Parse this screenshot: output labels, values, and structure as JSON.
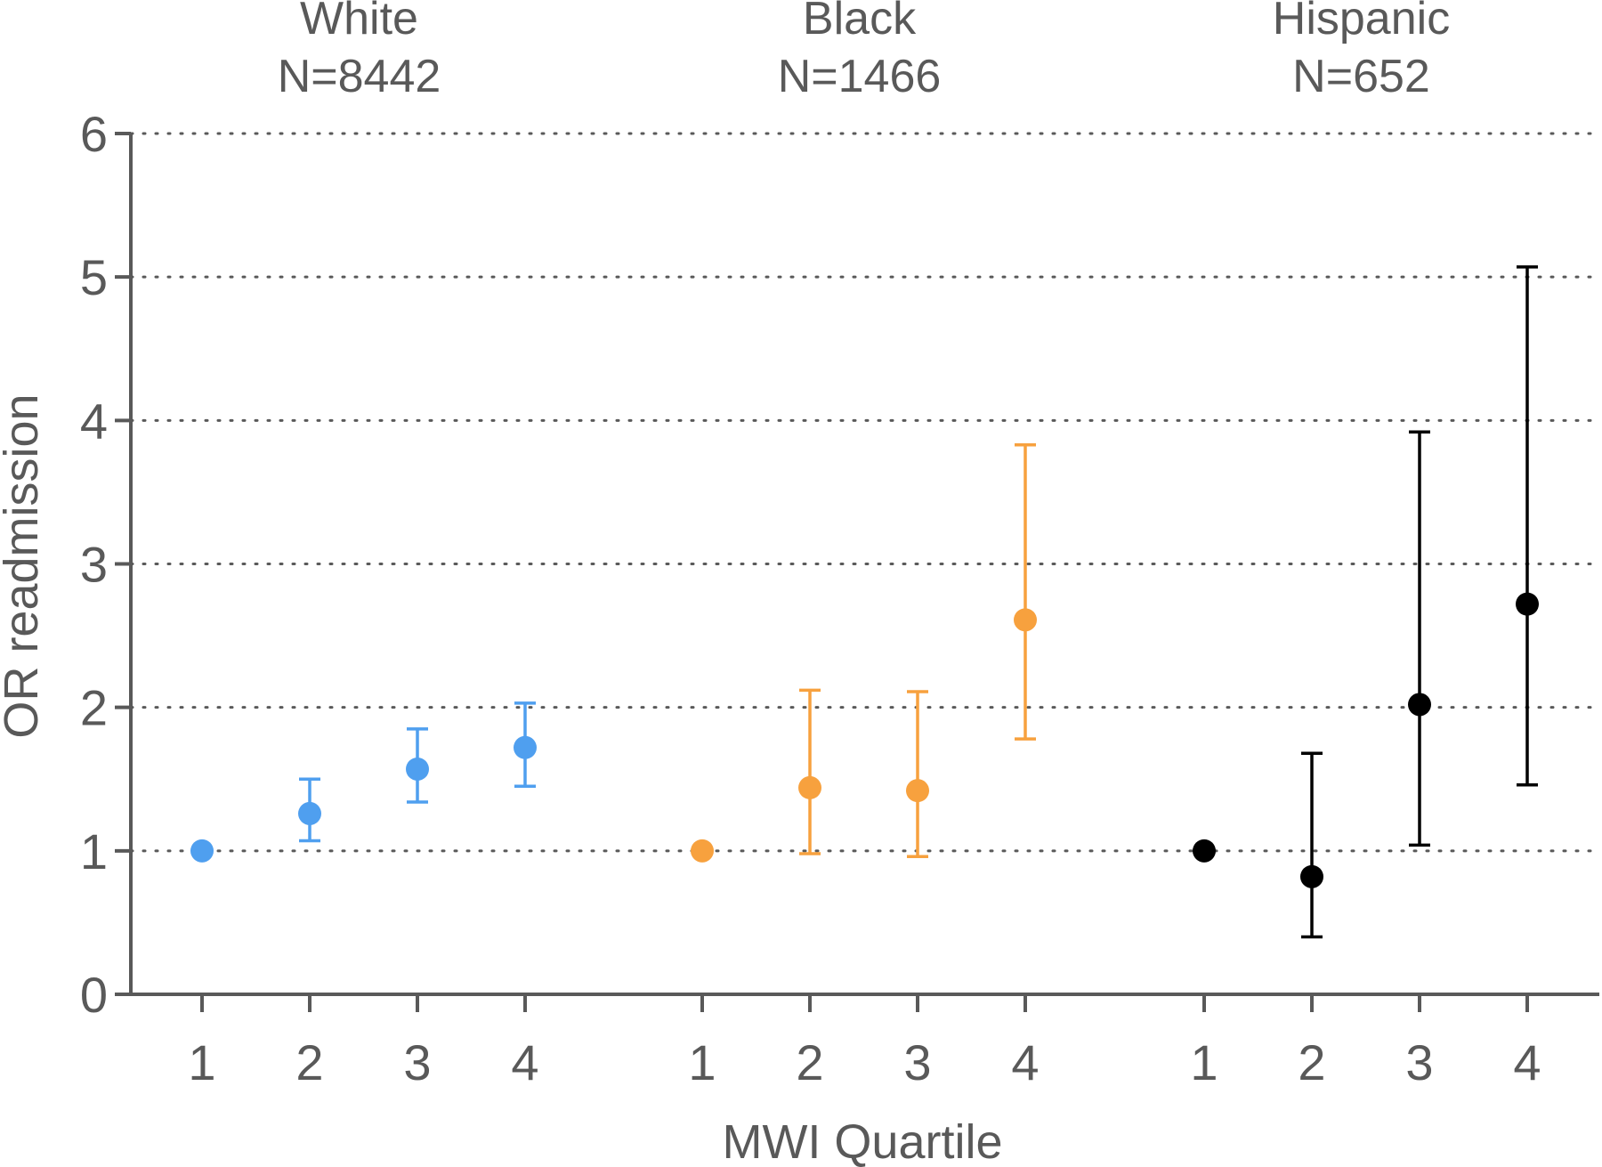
{
  "chart_data": {
    "type": "scatter",
    "title": "",
    "xlabel": "MWI Quartile",
    "ylabel": "OR readmission",
    "ylim": [
      0,
      6
    ],
    "yticks": [
      0,
      1,
      2,
      3,
      4,
      5,
      6
    ],
    "grid": "horizontal dotted at 1-6",
    "error_bars": true,
    "groups": [
      {
        "name": "White",
        "n_label": "N=8442",
        "color": "#4f9fef",
        "quartiles": [
          "1",
          "2",
          "3",
          "4"
        ],
        "or": [
          1.0,
          1.26,
          1.57,
          1.72
        ],
        "ci_low": [
          null,
          1.07,
          1.34,
          1.45
        ],
        "ci_high": [
          null,
          1.5,
          1.85,
          2.03
        ]
      },
      {
        "name": "Black",
        "n_label": "N=1466",
        "color": "#f7a13e",
        "quartiles": [
          "1",
          "2",
          "3",
          "4"
        ],
        "or": [
          1.0,
          1.44,
          1.42,
          2.61
        ],
        "ci_low": [
          null,
          0.98,
          0.96,
          1.78
        ],
        "ci_high": [
          null,
          2.12,
          2.11,
          3.83
        ]
      },
      {
        "name": "Hispanic",
        "n_label": "N=652",
        "color": "#000000",
        "quartiles": [
          "1",
          "2",
          "3",
          "4"
        ],
        "or": [
          1.0,
          0.82,
          2.02,
          2.72
        ],
        "ci_low": [
          null,
          0.4,
          1.04,
          1.46
        ],
        "ci_high": [
          null,
          1.68,
          3.92,
          5.07
        ]
      }
    ]
  }
}
